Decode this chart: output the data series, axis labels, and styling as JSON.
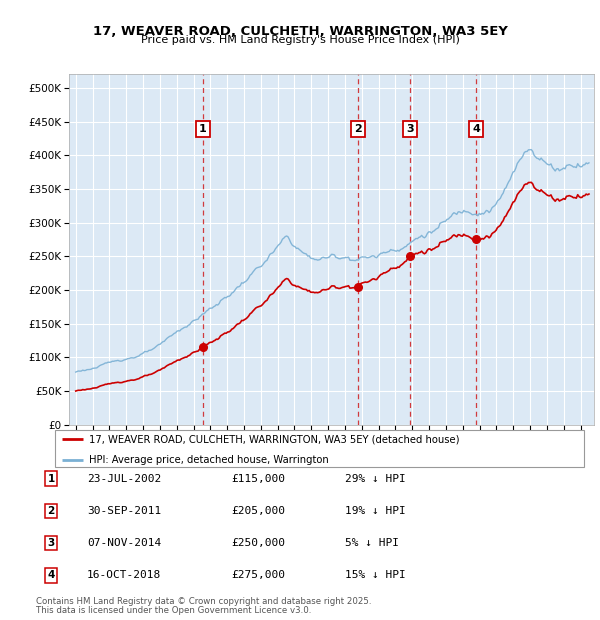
{
  "title_line1": "17, WEAVER ROAD, CULCHETH, WARRINGTON, WA3 5EY",
  "title_line2": "Price paid vs. HM Land Registry's House Price Index (HPI)",
  "ylim": [
    0,
    520000
  ],
  "yticks": [
    0,
    50000,
    100000,
    150000,
    200000,
    250000,
    300000,
    350000,
    400000,
    450000,
    500000
  ],
  "ytick_labels": [
    "£0",
    "£50K",
    "£100K",
    "£150K",
    "£200K",
    "£250K",
    "£300K",
    "£350K",
    "£400K",
    "£450K",
    "£500K"
  ],
  "xlim_start": 1994.6,
  "xlim_end": 2025.8,
  "bg_color": "#dce9f5",
  "grid_color": "#ffffff",
  "sale_color": "#cc0000",
  "hpi_color": "#7ab0d4",
  "sale_label": "17, WEAVER ROAD, CULCHETH, WARRINGTON, WA3 5EY (detached house)",
  "hpi_label": "HPI: Average price, detached house, Warrington",
  "transactions": [
    {
      "num": 1,
      "date": "23-JUL-2002",
      "year": 2002.55,
      "price": 115000,
      "pct": "29%",
      "dir": "↓"
    },
    {
      "num": 2,
      "date": "30-SEP-2011",
      "year": 2011.75,
      "price": 205000,
      "pct": "19%",
      "dir": "↓"
    },
    {
      "num": 3,
      "date": "07-NOV-2014",
      "year": 2014.85,
      "price": 250000,
      "pct": "5%",
      "dir": "↓"
    },
    {
      "num": 4,
      "date": "16-OCT-2018",
      "year": 2018.79,
      "price": 275000,
      "pct": "15%",
      "dir": "↓"
    }
  ],
  "footer_line1": "Contains HM Land Registry data © Crown copyright and database right 2025.",
  "footer_line2": "This data is licensed under the Open Government Licence v3.0."
}
